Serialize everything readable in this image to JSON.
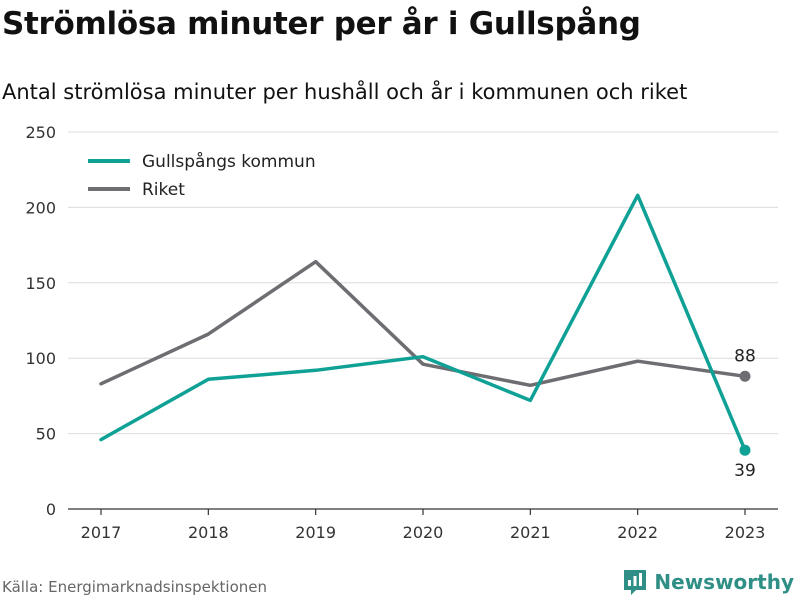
{
  "title": "Strömlösa minuter per år i Gullspång",
  "subtitle": "Antal strömlösa minuter per hushåll och år i kommunen och riket",
  "source": "Källa: Energimarknadsinspektionen",
  "brand": {
    "name": "Newsworthy",
    "icon": "newsworthy-logo-icon",
    "color": "#2f8f86"
  },
  "chart_data": {
    "type": "line",
    "x": [
      "2017",
      "2018",
      "2019",
      "2020",
      "2021",
      "2022",
      "2023"
    ],
    "ylim": [
      0,
      250
    ],
    "yticks": [
      0,
      50,
      100,
      150,
      200,
      250
    ],
    "grid": true,
    "legend_position": "top-left",
    "series": [
      {
        "name": "Gullspångs kommun",
        "color": "#0fa195",
        "values": [
          46,
          86,
          92,
          101,
          72,
          208,
          39
        ],
        "end_label": "39",
        "end_label_position": "below"
      },
      {
        "name": "Riket",
        "color": "#6d6d72",
        "values": [
          83,
          116,
          164,
          96,
          82,
          98,
          88
        ],
        "end_label": "88",
        "end_label_position": "above"
      }
    ]
  }
}
